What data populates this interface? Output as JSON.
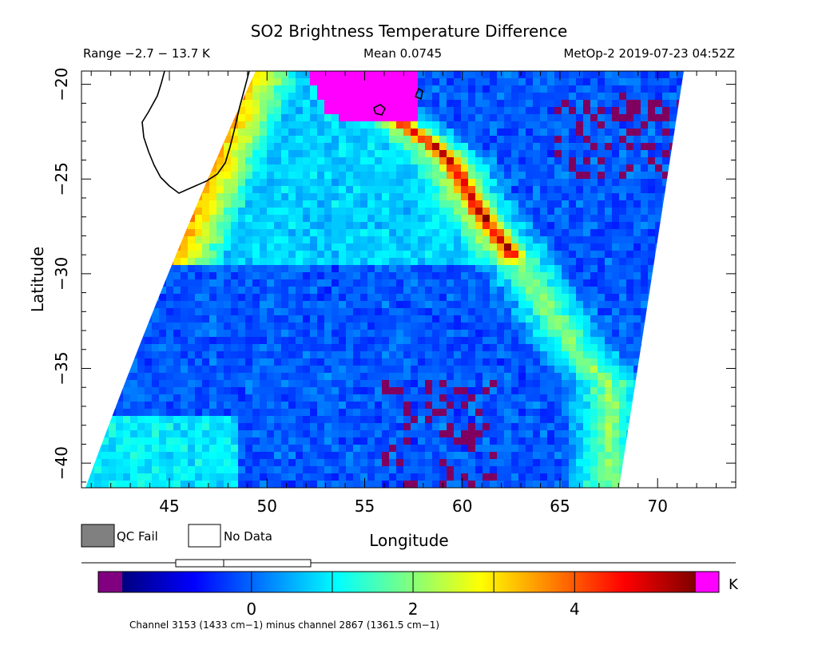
{
  "title": "SO2 Brightness Temperature Difference",
  "header": {
    "range": "Range −2.7 − 13.7 K",
    "mean": "Mean 0.0745",
    "satellite_time": "MetOp-2 2019-07-23 04:52Z"
  },
  "map": {
    "xlabel": "Longitude",
    "ylabel": "Latitude",
    "lon_range": [
      40.5,
      74
    ],
    "lat_range": [
      -41.3,
      -19.3
    ],
    "lon_ticks": [
      45,
      50,
      55,
      60,
      65,
      70
    ],
    "lon_tick_labels": [
      "45",
      "50",
      "55",
      "60",
      "65",
      "70"
    ],
    "lat_ticks": [
      -20,
      -25,
      -30,
      -35,
      -40
    ],
    "lat_tick_labels": [
      "−20",
      "−25",
      "−30",
      "−35",
      "−40"
    ]
  },
  "legend": {
    "qc_fail": "QC Fail",
    "no_data": "No Data",
    "qc_fail_color": "#808080",
    "no_data_color": "#ffffff"
  },
  "colorbar": {
    "unit": "K",
    "range": [
      -1.6,
      5.5
    ],
    "ticks": [
      0,
      2,
      4
    ],
    "tick_labels": [
      "0",
      "2",
      "4"
    ],
    "under_color": "#800080",
    "over_color": "#ff00ff",
    "caption": "Channel 3153 (1433 cm−1) minus channel 2867 (1361.5 cm−1)"
  }
}
